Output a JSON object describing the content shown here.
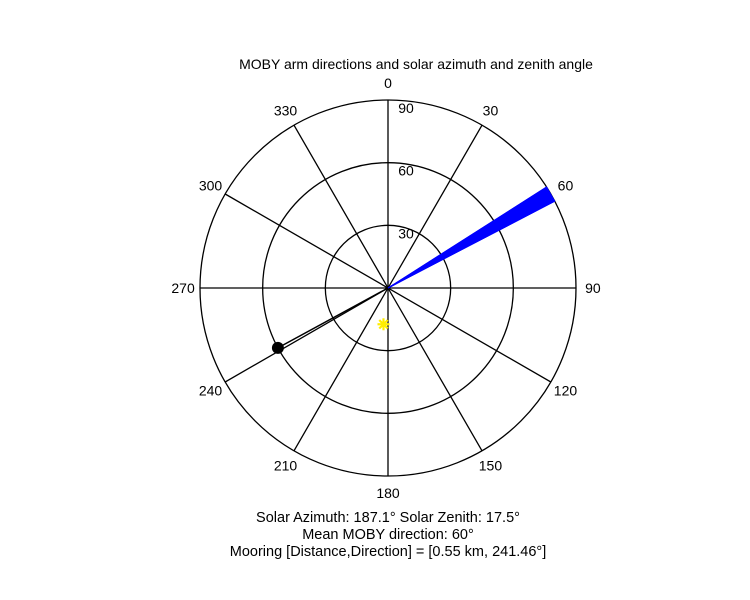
{
  "chart_data": {
    "type": "polar",
    "title": "MOBY arm directions and solar azimuth and zenith angle",
    "angle_ticks": [
      {
        "deg": 0,
        "label": "0"
      },
      {
        "deg": 30,
        "label": "30"
      },
      {
        "deg": 60,
        "label": "60"
      },
      {
        "deg": 90,
        "label": "90"
      },
      {
        "deg": 120,
        "label": "120"
      },
      {
        "deg": 150,
        "label": "150"
      },
      {
        "deg": 180,
        "label": "180"
      },
      {
        "deg": 210,
        "label": "210"
      },
      {
        "deg": 240,
        "label": "240"
      },
      {
        "deg": 270,
        "label": "270"
      },
      {
        "deg": 300,
        "label": "300"
      },
      {
        "deg": 330,
        "label": "330"
      }
    ],
    "radial_ticks": [
      {
        "value": 30,
        "label": "30"
      },
      {
        "value": 60,
        "label": "60"
      },
      {
        "value": 90,
        "label": "90"
      }
    ],
    "r_max": 90,
    "arm_directions_deg": [
      57.5,
      58.0,
      58.5,
      59.0,
      59.5,
      60.0,
      60.5,
      61.0,
      61.5,
      62.0,
      62.5
    ],
    "arm_length": 90,
    "arm_color": "#0000ff",
    "sun": {
      "azimuth": 187.1,
      "zenith": 17.5,
      "color": "#ffee00"
    },
    "mooring": {
      "direction": 241.46,
      "r": 60,
      "color": "#000000"
    },
    "captions": [
      "Solar Azimuth: 187.1°   Solar Zenith: 17.5°",
      "Mean MOBY direction: 60°",
      "Mooring [Distance,Direction] = [0.55 km, 241.46°]"
    ]
  }
}
